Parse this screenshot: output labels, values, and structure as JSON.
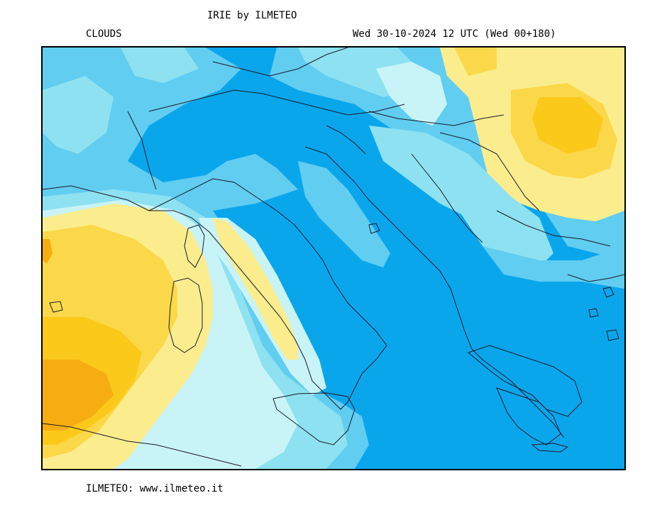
{
  "header": {
    "title": "IRIE by ILMETEO",
    "variable": "CLOUDS",
    "datetime": "Wed 30-10-2024 12 UTC (Wed 00+180)"
  },
  "footer": {
    "credit": "ILMETEO: www.ilmeteo.it"
  },
  "map": {
    "field": "cloud cover",
    "palette": {
      "clear_sea": "#0aa6ec",
      "light_blue": "#61cdf1",
      "pale_cyan": "#8ee1f0",
      "very_pale": "#c8f4f8",
      "light_yellow": "#fbed8e",
      "yellow": "#fbd84a",
      "orange_yellow": "#fbc91a",
      "orange": "#f6ad12",
      "coastline": "#1a1a2a"
    }
  }
}
